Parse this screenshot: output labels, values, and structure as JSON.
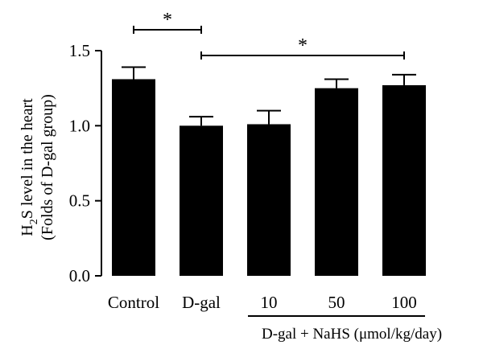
{
  "chart_data": {
    "type": "bar",
    "ylabel_line1_main": "H",
    "ylabel_line1_sub": "2",
    "ylabel_line1_rest": "S level in the heart",
    "ylabel_line2": "(Folds of D-gal group)",
    "ylim": [
      0,
      1.5
    ],
    "yticks": [
      0.0,
      0.5,
      1.0,
      1.5
    ],
    "ytick_labels": [
      "0.0",
      "0.5",
      "1.0",
      "1.5"
    ],
    "categories": [
      "Control",
      "D-gal",
      "10",
      "50",
      "100"
    ],
    "values": [
      1.31,
      1.0,
      1.01,
      1.25,
      1.27
    ],
    "errors": [
      0.08,
      0.06,
      0.09,
      0.06,
      0.07
    ],
    "group_label": "D-gal + NaHS (μmol/kg/day)",
    "group_categories": [
      2,
      4
    ],
    "significance": [
      {
        "from": 0,
        "to": 1,
        "label": "*"
      },
      {
        "from": 1,
        "to": 4,
        "label": "*"
      }
    ],
    "bar_color": "#000000",
    "grid": false
  }
}
